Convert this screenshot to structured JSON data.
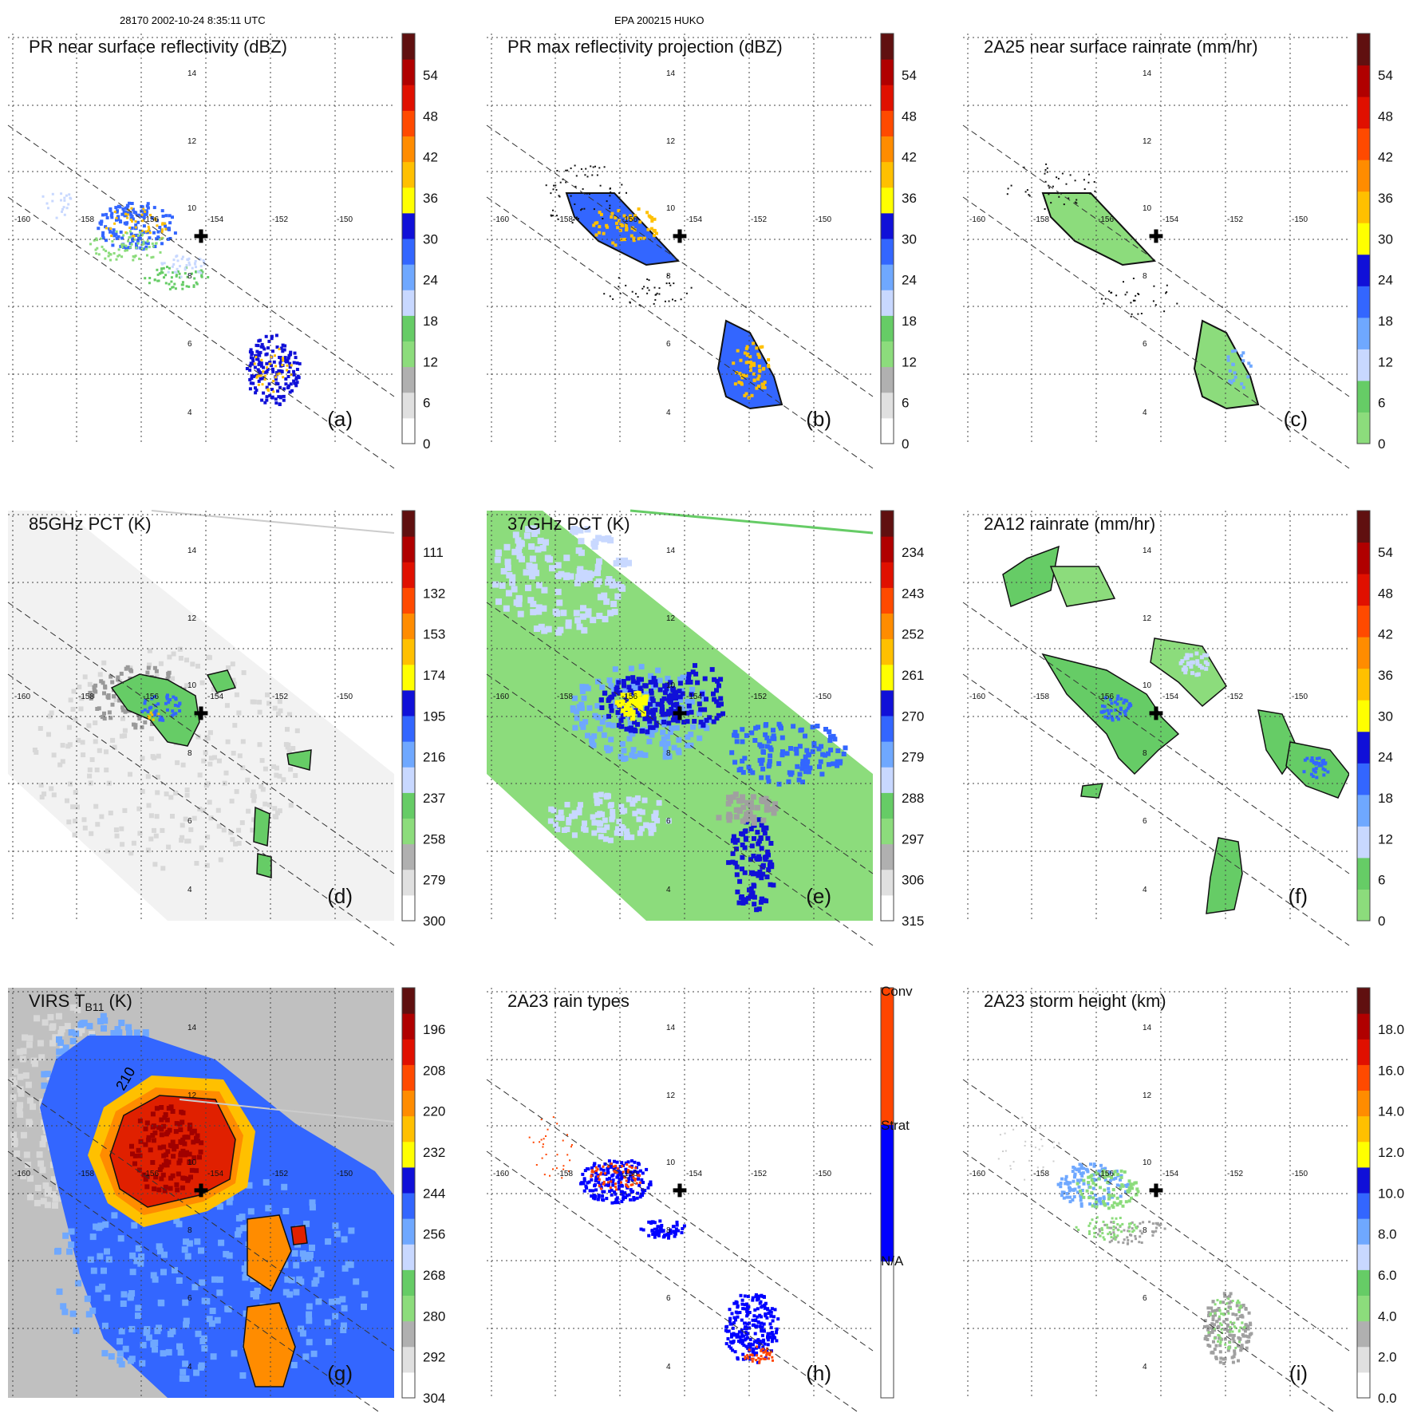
{
  "header": {
    "left": "28170 2002-10-24 8:35:11 UTC",
    "center": "EPA 200215 HUKO"
  },
  "map": {
    "lon_ticks": [
      "-160",
      "-158",
      "-156",
      "-154",
      "-152",
      "-150"
    ],
    "lat_ticks": [
      "4",
      "6",
      "8",
      "10",
      "12",
      "14"
    ]
  },
  "chart_data": [
    {
      "type": "heatmap",
      "panel": "(a)",
      "title": "PR near surface reflectivity (dBZ)",
      "colorbar": {
        "labels": [
          "0",
          "6",
          "12",
          "18",
          "24",
          "30",
          "36",
          "42",
          "48",
          "54"
        ],
        "colors": [
          "#ffffff",
          "#e0e0e0",
          "#b0b0b0",
          "#8cdc7c",
          "#66cc66",
          "#c8d8ff",
          "#6fa8ff",
          "#3366ff",
          "#1010d8",
          "#ffff00",
          "#ffc000",
          "#ff8c00",
          "#ff4a00",
          "#e01000",
          "#b00000",
          "#601010"
        ]
      },
      "field": "sparse_swath"
    },
    {
      "type": "heatmap",
      "panel": "(b)",
      "title": "PR max reflectivity projection (dBZ)",
      "colorbar": {
        "labels": [
          "0",
          "6",
          "12",
          "18",
          "24",
          "30",
          "36",
          "42",
          "48",
          "54"
        ],
        "colors": [
          "#ffffff",
          "#e0e0e0",
          "#b0b0b0",
          "#8cdc7c",
          "#66cc66",
          "#c8d8ff",
          "#6fa8ff",
          "#3366ff",
          "#1010d8",
          "#ffff00",
          "#ffc000",
          "#ff8c00",
          "#ff4a00",
          "#e01000",
          "#b00000",
          "#601010"
        ]
      },
      "field": "sparse_swath_contour"
    },
    {
      "type": "heatmap",
      "panel": "(c)",
      "title": "2A25 near surface rainrate (mm/hr)",
      "colorbar": {
        "labels": [
          "0",
          "6",
          "12",
          "18",
          "24",
          "30",
          "36",
          "42",
          "48",
          "54"
        ],
        "colors": [
          "#8cdc7c",
          "#66cc66",
          "#c8d8ff",
          "#6fa8ff",
          "#3366ff",
          "#1010d8",
          "#ffff00",
          "#ffc000",
          "#ff8c00",
          "#ff4a00",
          "#e01000",
          "#b00000",
          "#601010"
        ]
      },
      "field": "sparse_swath_green"
    },
    {
      "type": "heatmap",
      "panel": "(d)",
      "title": "85GHz PCT (K)",
      "colorbar": {
        "labels": [
          "300",
          "279",
          "258",
          "237",
          "216",
          "195",
          "174",
          "153",
          "132",
          "111"
        ],
        "colors": [
          "#ffffff",
          "#e0e0e0",
          "#b0b0b0",
          "#8cdc7c",
          "#66cc66",
          "#c8d8ff",
          "#6fa8ff",
          "#3366ff",
          "#1010d8",
          "#ffff00",
          "#ffc000",
          "#ff8c00",
          "#ff4a00",
          "#e01000",
          "#b00000",
          "#601010"
        ]
      },
      "field": "wide_swath_gray"
    },
    {
      "type": "heatmap",
      "panel": "(e)",
      "title": "37GHz PCT (K)",
      "colorbar": {
        "labels": [
          "315",
          "306",
          "297",
          "288",
          "279",
          "270",
          "261",
          "252",
          "243",
          "234"
        ],
        "colors": [
          "#ffffff",
          "#e0e0e0",
          "#b0b0b0",
          "#8cdc7c",
          "#66cc66",
          "#c8d8ff",
          "#6fa8ff",
          "#3366ff",
          "#1010d8",
          "#ffff00",
          "#ffc000",
          "#ff8c00",
          "#ff4a00",
          "#e01000",
          "#b00000",
          "#601010"
        ]
      },
      "field": "wide_swath_green"
    },
    {
      "type": "heatmap",
      "panel": "(f)",
      "title": "2A12 rainrate (mm/hr)",
      "colorbar": {
        "labels": [
          "0",
          "6",
          "12",
          "18",
          "24",
          "30",
          "36",
          "42",
          "48",
          "54"
        ],
        "colors": [
          "#8cdc7c",
          "#66cc66",
          "#c8d8ff",
          "#6fa8ff",
          "#3366ff",
          "#1010d8",
          "#ffff00",
          "#ffc000",
          "#ff8c00",
          "#ff4a00",
          "#e01000",
          "#b00000",
          "#601010"
        ]
      },
      "field": "patchy_green"
    },
    {
      "type": "heatmap",
      "panel": "(g)",
      "title": "VIRS T",
      "title_sub": "B11",
      "title_suffix": " (K)",
      "contour_label": "210",
      "colorbar": {
        "labels": [
          "304",
          "292",
          "280",
          "268",
          "256",
          "244",
          "232",
          "220",
          "208",
          "196"
        ],
        "colors": [
          "#ffffff",
          "#e0e0e0",
          "#b0b0b0",
          "#8cdc7c",
          "#66cc66",
          "#c8d8ff",
          "#6fa8ff",
          "#3366ff",
          "#1010d8",
          "#ffff00",
          "#ffc000",
          "#ff8c00",
          "#ff4a00",
          "#e01000",
          "#b00000",
          "#601010"
        ]
      },
      "field": "ir_swath"
    },
    {
      "type": "heatmap",
      "panel": "(h)",
      "title": "2A23 rain types",
      "colorbar": {
        "labels": [
          "N/A",
          "Strat",
          "Conv"
        ],
        "colors": [
          "#ffffff",
          "#0000ff",
          "#ff4500"
        ],
        "categorical": true
      },
      "field": "rain_types"
    },
    {
      "type": "heatmap",
      "panel": "(i)",
      "title": "2A23 storm height (km)",
      "colorbar": {
        "labels": [
          "0.0",
          "2.0",
          "4.0",
          "6.0",
          "8.0",
          "10.0",
          "12.0",
          "14.0",
          "16.0",
          "18.0"
        ],
        "colors": [
          "#ffffff",
          "#e0e0e0",
          "#b0b0b0",
          "#8cdc7c",
          "#66cc66",
          "#c8d8ff",
          "#6fa8ff",
          "#3366ff",
          "#1010d8",
          "#ffff00",
          "#ffc000",
          "#ff8c00",
          "#ff4a00",
          "#e01000",
          "#b00000",
          "#601010"
        ]
      },
      "field": "storm_height"
    }
  ]
}
